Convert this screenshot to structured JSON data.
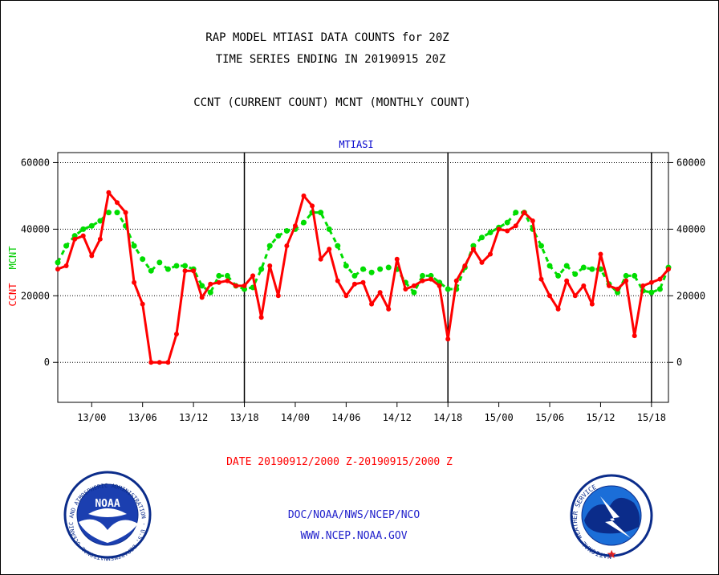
{
  "header": {
    "title_line1": "RAP MODEL MTIASI DATA COUNTS for 20Z",
    "title_line2": "TIME SERIES ENDING IN 20190915 20Z",
    "subtitle": "CCNT (CURRENT COUNT) MCNT (MONTHLY COUNT)"
  },
  "footer": {
    "date_range": "DATE 20190912/2000 Z-20190915/2000 Z",
    "credit_line1": "DOC/NOAA/NWS/NCEP/NCO",
    "credit_line2": "WWW.NCEP.NOAA.GOV"
  },
  "logos": {
    "noaa_text": "NOAA",
    "noaa_ring": "NATIONAL OCEANIC AND ATMOSPHERIC ADMINISTRATION · U.S. DEPARTMENT OF COMMERCE ·",
    "nws_ring": "NATIONAL WEATHER SERVICE"
  },
  "colors": {
    "ccnt": "#ff0000",
    "mcnt": "#00dd00",
    "panel_title": "#0000cc",
    "credit": "#2222cc",
    "date": "#ff0000"
  },
  "chart_data": {
    "type": "line",
    "title": "MTIASI",
    "ylabel_left_ccnt": "CCNT",
    "ylabel_left_mcnt": "MCNT",
    "ylim": [
      -12000,
      63000
    ],
    "xlim": [
      -4,
      68
    ],
    "yticks": [
      0,
      20000,
      40000,
      60000
    ],
    "ytick_labels": [
      "0",
      "20000",
      "40000",
      "60000"
    ],
    "xticks": [
      0,
      6,
      12,
      18,
      24,
      30,
      36,
      42,
      48,
      54,
      60,
      66
    ],
    "xtick_labels": [
      "13/00",
      "13/06",
      "13/12",
      "13/18",
      "14/00",
      "14/06",
      "14/12",
      "14/18",
      "15/00",
      "15/06",
      "15/12",
      "15/18"
    ],
    "vertical_lines": [
      18,
      42,
      66
    ],
    "grid": true,
    "series": [
      {
        "name": "CCNT",
        "values": [
          [
            -4,
            28000
          ],
          [
            -3,
            29000
          ],
          [
            -2,
            37000
          ],
          [
            -1,
            38000
          ],
          [
            0,
            32000
          ],
          [
            1,
            37000
          ],
          [
            2,
            51000
          ],
          [
            3,
            48000
          ],
          [
            4,
            45000
          ],
          [
            5,
            24000
          ],
          [
            6,
            17500
          ],
          [
            7,
            0
          ],
          [
            8,
            0
          ],
          [
            9,
            0
          ],
          [
            10,
            8500
          ],
          [
            11,
            27500
          ],
          [
            12,
            27500
          ],
          [
            13,
            19500
          ],
          [
            14,
            23500
          ],
          [
            15,
            24000
          ],
          [
            16,
            24500
          ],
          [
            17,
            23000
          ],
          [
            18,
            23000
          ],
          [
            19,
            26000
          ],
          [
            20,
            13500
          ],
          [
            21,
            29000
          ],
          [
            22,
            20000
          ],
          [
            23,
            35000
          ],
          [
            24,
            41000
          ],
          [
            25,
            50000
          ],
          [
            26,
            47000
          ],
          [
            27,
            31000
          ],
          [
            28,
            34000
          ],
          [
            29,
            24500
          ],
          [
            30,
            20000
          ],
          [
            31,
            23500
          ],
          [
            32,
            24000
          ],
          [
            33,
            17500
          ],
          [
            34,
            21000
          ],
          [
            35,
            16000
          ],
          [
            36,
            31000
          ],
          [
            37,
            22000
          ],
          [
            38,
            23000
          ],
          [
            39,
            24500
          ],
          [
            40,
            25000
          ],
          [
            41,
            23000
          ],
          [
            42,
            7000
          ],
          [
            43,
            24500
          ],
          [
            44,
            29000
          ],
          [
            45,
            34000
          ],
          [
            46,
            30000
          ],
          [
            47,
            32500
          ],
          [
            48,
            40000
          ],
          [
            49,
            39500
          ],
          [
            50,
            41000
          ],
          [
            51,
            45000
          ],
          [
            52,
            42500
          ],
          [
            53,
            25000
          ],
          [
            54,
            20000
          ],
          [
            55,
            16000
          ],
          [
            56,
            24500
          ],
          [
            57,
            20000
          ],
          [
            58,
            23000
          ],
          [
            59,
            17500
          ],
          [
            60,
            32500
          ],
          [
            61,
            23000
          ],
          [
            62,
            22000
          ],
          [
            63,
            24500
          ],
          [
            64,
            8000
          ],
          [
            65,
            23000
          ],
          [
            66,
            24000
          ],
          [
            67,
            25000
          ],
          [
            68,
            28000
          ]
        ]
      },
      {
        "name": "MCNT",
        "values": [
          [
            -4,
            30000
          ],
          [
            -3,
            35000
          ],
          [
            -2,
            38000
          ],
          [
            -1,
            40000
          ],
          [
            0,
            41000
          ],
          [
            1,
            42500
          ],
          [
            2,
            45000
          ],
          [
            3,
            45000
          ],
          [
            4,
            41000
          ],
          [
            5,
            35000
          ],
          [
            6,
            31000
          ],
          [
            7,
            27500
          ],
          [
            8,
            30000
          ],
          [
            9,
            28000
          ],
          [
            10,
            29000
          ],
          [
            11,
            29000
          ],
          [
            12,
            28000
          ],
          [
            13,
            23000
          ],
          [
            14,
            21000
          ],
          [
            15,
            26000
          ],
          [
            16,
            26000
          ],
          [
            17,
            23000
          ],
          [
            18,
            22000
          ],
          [
            19,
            22500
          ],
          [
            20,
            28000
          ],
          [
            21,
            35000
          ],
          [
            22,
            38000
          ],
          [
            23,
            39500
          ],
          [
            24,
            40000
          ],
          [
            25,
            42000
          ],
          [
            26,
            45000
          ],
          [
            27,
            45000
          ],
          [
            28,
            40000
          ],
          [
            29,
            35000
          ],
          [
            30,
            29000
          ],
          [
            31,
            26000
          ],
          [
            32,
            28000
          ],
          [
            33,
            27000
          ],
          [
            34,
            28000
          ],
          [
            35,
            28500
          ],
          [
            36,
            28000
          ],
          [
            37,
            24000
          ],
          [
            38,
            21000
          ],
          [
            39,
            26000
          ],
          [
            40,
            26000
          ],
          [
            41,
            24000
          ],
          [
            42,
            22000
          ],
          [
            43,
            22000
          ],
          [
            44,
            28500
          ],
          [
            45,
            35000
          ],
          [
            46,
            37500
          ],
          [
            47,
            39000
          ],
          [
            48,
            40500
          ],
          [
            49,
            42000
          ],
          [
            50,
            45000
          ],
          [
            51,
            45000
          ],
          [
            52,
            40000
          ],
          [
            53,
            35000
          ],
          [
            54,
            29000
          ],
          [
            55,
            26000
          ],
          [
            56,
            29000
          ],
          [
            57,
            26500
          ],
          [
            58,
            28500
          ],
          [
            59,
            28000
          ],
          [
            60,
            28000
          ],
          [
            61,
            23500
          ],
          [
            62,
            21000
          ],
          [
            63,
            26000
          ],
          [
            64,
            26000
          ],
          [
            65,
            21500
          ],
          [
            66,
            21000
          ],
          [
            67,
            22000
          ],
          [
            68,
            28500
          ]
        ]
      }
    ]
  }
}
